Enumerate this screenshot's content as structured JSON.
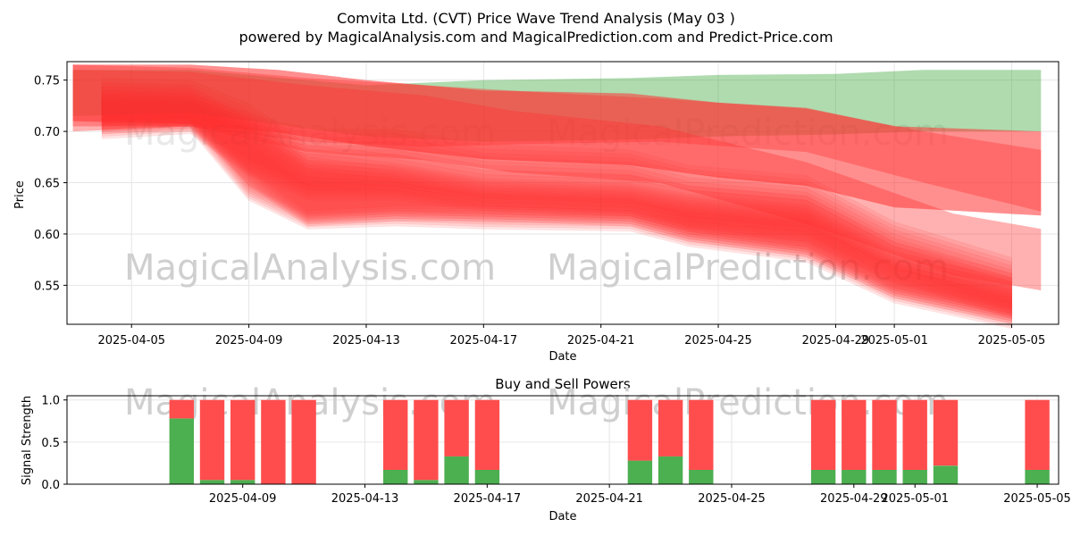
{
  "title_line1": "Comvita Ltd. (CVT) Price Wave Trend Analysis (May 03 )",
  "title_line2": "powered by MagicalAnalysis.com and MagicalPrediction.com and Predict-Price.com",
  "watermarks": [
    "MagicalAnalysis.com",
    "MagicalPrediction.com"
  ],
  "colors": {
    "green_band": "#2ca02c",
    "red_band": "#ff3333",
    "buy": "#4caf50",
    "sell": "#ff4d4d"
  },
  "chart_data": [
    {
      "type": "area",
      "title": "",
      "xlabel": "Date",
      "ylabel": "Price",
      "x_ticks": [
        "2025-04-05",
        "2025-04-09",
        "2025-04-13",
        "2025-04-17",
        "2025-04-21",
        "2025-04-25",
        "2025-04-29",
        "2025-05-01",
        "2025-05-05"
      ],
      "y_ticks": [
        0.55,
        0.6,
        0.65,
        0.7,
        0.75
      ],
      "xlim": [
        "2025-04-02",
        "2025-05-06"
      ],
      "ylim": [
        0.512,
        0.768
      ],
      "grid": true,
      "bands": [
        {
          "color": "green",
          "x": [
            "2025-04-03",
            "2025-04-07",
            "2025-04-13",
            "2025-04-17",
            "2025-04-22",
            "2025-04-25",
            "2025-04-29",
            "2025-05-02",
            "2025-05-06"
          ],
          "upper": [
            0.76,
            0.76,
            0.745,
            0.75,
            0.752,
            0.755,
            0.756,
            0.76,
            0.76
          ],
          "lower": [
            0.715,
            0.718,
            0.695,
            0.69,
            0.692,
            0.695,
            0.697,
            0.7,
            0.7
          ]
        },
        {
          "color": "red",
          "x": [
            "2025-04-03",
            "2025-04-07",
            "2025-04-10",
            "2025-04-13",
            "2025-04-17",
            "2025-04-22",
            "2025-04-25",
            "2025-04-28",
            "2025-05-01",
            "2025-05-06"
          ],
          "upper": [
            0.765,
            0.765,
            0.76,
            0.75,
            0.74,
            0.737,
            0.728,
            0.723,
            0.705,
            0.7
          ]
        },
        {
          "color": "red",
          "x": [
            "2025-04-03",
            "2025-04-07",
            "2025-04-11",
            "2025-04-15",
            "2025-04-19",
            "2025-04-23",
            "2025-04-28",
            "2025-05-02",
            "2025-05-06"
          ],
          "upper": [
            0.765,
            0.762,
            0.752,
            0.745,
            0.738,
            0.732,
            0.722,
            0.7,
            0.682
          ],
          "lower": [
            0.7,
            0.705,
            0.69,
            0.685,
            0.688,
            0.69,
            0.68,
            0.65,
            0.622
          ]
        },
        {
          "color": "red",
          "x": [
            "2025-04-03",
            "2025-04-07",
            "2025-04-11",
            "2025-04-15",
            "2025-04-18",
            "2025-04-23",
            "2025-04-28",
            "2025-05-01",
            "2025-05-03",
            "2025-05-06"
          ],
          "upper": [
            0.76,
            0.758,
            0.745,
            0.735,
            0.72,
            0.705,
            0.67,
            0.64,
            0.62,
            0.605
          ],
          "lower": [
            0.705,
            0.705,
            0.68,
            0.672,
            0.66,
            0.65,
            0.61,
            0.58,
            0.56,
            0.545
          ]
        }
      ],
      "wave_ribbons": [
        {
          "x": [
            "2025-04-04",
            "2025-04-07",
            "2025-04-09",
            "2025-04-11",
            "2025-04-14",
            "2025-04-17",
            "2025-04-22",
            "2025-04-24",
            "2025-04-28",
            "2025-05-01",
            "2025-05-05"
          ],
          "upper": [
            0.725,
            0.725,
            0.705,
            0.69,
            0.69,
            0.675,
            0.67,
            0.655,
            0.645,
            0.6,
            0.565
          ],
          "lower": [
            0.7,
            0.705,
            0.665,
            0.64,
            0.64,
            0.63,
            0.625,
            0.61,
            0.6,
            0.56,
            0.525
          ]
        },
        {
          "x": [
            "2025-04-04",
            "2025-04-07",
            "2025-04-09",
            "2025-04-11",
            "2025-04-14",
            "2025-04-17",
            "2025-04-22",
            "2025-04-24",
            "2025-04-28",
            "2025-05-01",
            "2025-05-05"
          ],
          "upper": [
            0.74,
            0.738,
            0.715,
            0.675,
            0.665,
            0.65,
            0.645,
            0.635,
            0.625,
            0.58,
            0.55
          ],
          "lower": [
            0.715,
            0.712,
            0.655,
            0.615,
            0.62,
            0.62,
            0.615,
            0.6,
            0.585,
            0.545,
            0.52
          ]
        },
        {
          "x": [
            "2025-04-04",
            "2025-04-07",
            "2025-04-09",
            "2025-04-11",
            "2025-04-14",
            "2025-04-17",
            "2025-04-22",
            "2025-04-24",
            "2025-04-28",
            "2025-05-01",
            "2025-05-05"
          ],
          "upper": [
            0.735,
            0.732,
            0.7,
            0.66,
            0.655,
            0.64,
            0.635,
            0.625,
            0.615,
            0.57,
            0.545
          ],
          "lower": [
            0.705,
            0.708,
            0.64,
            0.612,
            0.615,
            0.612,
            0.61,
            0.595,
            0.58,
            0.54,
            0.515
          ]
        }
      ],
      "series": []
    },
    {
      "type": "bar",
      "title": "Buy and Sell Powers",
      "xlabel": "Date",
      "ylabel": "Signal Strength",
      "x_ticks": [
        "2025-04-09",
        "2025-04-13",
        "2025-04-17",
        "2025-04-21",
        "2025-04-25",
        "2025-04-29",
        "2025-05-01",
        "2025-05-05"
      ],
      "y_ticks": [
        0.0,
        0.5,
        1.0
      ],
      "xlim": [
        "2025-04-04",
        "2025-05-06"
      ],
      "ylim": [
        0,
        1.05
      ],
      "categories": [
        "2025-04-07",
        "2025-04-08",
        "2025-04-09",
        "2025-04-10",
        "2025-04-11",
        "2025-04-14",
        "2025-04-15",
        "2025-04-16",
        "2025-04-17",
        "2025-04-22",
        "2025-04-23",
        "2025-04-24",
        "2025-04-28",
        "2025-04-29",
        "2025-04-30",
        "2025-05-01",
        "2025-05-02",
        "2025-05-05"
      ],
      "series": [
        {
          "name": "Buy",
          "values": [
            0.78,
            0.05,
            0.05,
            0.0,
            0.0,
            0.17,
            0.05,
            0.33,
            0.17,
            0.28,
            0.33,
            0.17,
            0.17,
            0.17,
            0.17,
            0.17,
            0.22,
            0.17
          ]
        },
        {
          "name": "Sell",
          "values": [
            0.22,
            0.95,
            0.95,
            1.0,
            1.0,
            0.83,
            0.95,
            0.67,
            0.83,
            0.72,
            0.67,
            0.83,
            0.83,
            0.83,
            0.83,
            0.83,
            0.78,
            0.83
          ]
        }
      ]
    }
  ]
}
